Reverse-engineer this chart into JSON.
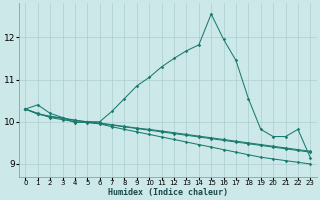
{
  "xlabel": "Humidex (Indice chaleur)",
  "background_color": "#cce8e8",
  "grid_color": "#aacfcf",
  "line_color": "#1a7a6e",
  "xlim": [
    -0.5,
    23.5
  ],
  "ylim": [
    8.7,
    12.8
  ],
  "yticks": [
    9,
    10,
    11,
    12
  ],
  "xtick_labels": [
    "0",
    "1",
    "2",
    "3",
    "4",
    "5",
    "6",
    "7",
    "8",
    "9",
    "10",
    "11",
    "12",
    "13",
    "14",
    "15",
    "16",
    "17",
    "18",
    "19",
    "20",
    "21",
    "22",
    "23"
  ],
  "series": [
    [
      10.3,
      10.4,
      10.2,
      10.1,
      9.98,
      10.0,
      10.0,
      10.25,
      10.55,
      10.85,
      11.05,
      11.3,
      11.5,
      11.68,
      11.82,
      12.55,
      11.95,
      11.45,
      10.55,
      9.82,
      9.65,
      9.65,
      9.82,
      9.15
    ],
    [
      10.3,
      10.2,
      10.1,
      10.05,
      10.0,
      9.98,
      9.95,
      9.88,
      9.82,
      9.76,
      9.7,
      9.64,
      9.58,
      9.52,
      9.46,
      9.4,
      9.34,
      9.28,
      9.22,
      9.16,
      9.12,
      9.08,
      9.04,
      9.0
    ],
    [
      10.3,
      10.18,
      10.12,
      10.08,
      10.03,
      9.99,
      9.96,
      9.92,
      9.88,
      9.84,
      9.8,
      9.76,
      9.72,
      9.68,
      9.64,
      9.6,
      9.56,
      9.52,
      9.48,
      9.44,
      9.4,
      9.36,
      9.32,
      9.28
    ],
    [
      10.3,
      10.19,
      10.13,
      10.09,
      10.04,
      10.0,
      9.97,
      9.93,
      9.89,
      9.85,
      9.82,
      9.78,
      9.74,
      9.7,
      9.66,
      9.62,
      9.58,
      9.54,
      9.5,
      9.46,
      9.42,
      9.38,
      9.34,
      9.3
    ]
  ]
}
